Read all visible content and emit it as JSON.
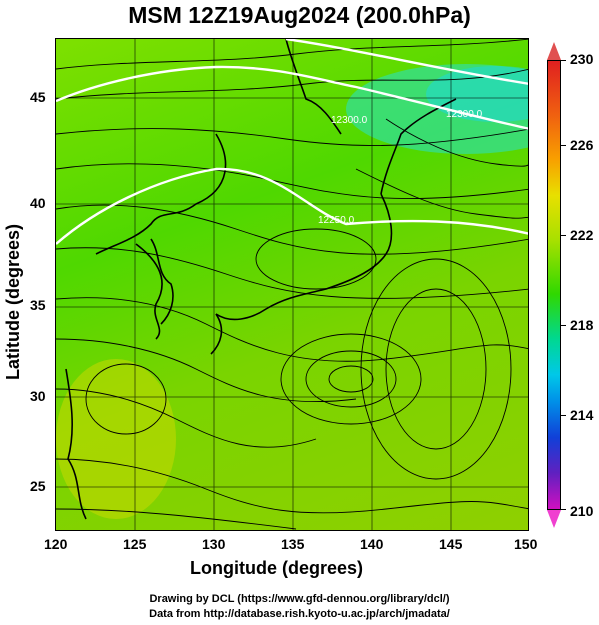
{
  "title": "MSM 12Z19Aug2024 (200.0hPa)",
  "xaxis": {
    "label": "Longitude (degrees)",
    "ticks": [
      "120",
      "125",
      "130",
      "135",
      "140",
      "145",
      "150"
    ]
  },
  "yaxis": {
    "label": "Latitude  (degrees)",
    "ticks": [
      "45",
      "40",
      "35",
      "30",
      "25"
    ]
  },
  "colorbar": {
    "ticks": [
      "230",
      "226",
      "222",
      "218",
      "214",
      "210"
    ]
  },
  "contours": {
    "label_a": "12300.0",
    "label_b": "12300.0",
    "label_c": "12250.0"
  },
  "credits": {
    "line1": "Drawing by DCL (https://www.gfd-dennou.org/library/dcl/)",
    "line2": "Data from http://database.rish.kyoto-u.ac.jp/arch/jmadata/"
  },
  "chart_data": {
    "type": "heatmap",
    "title": "MSM 12Z19Aug2024 (200.0hPa)",
    "xlabel": "Longitude (degrees)",
    "ylabel": "Latitude  (degrees)",
    "xlim": [
      120,
      150
    ],
    "ylim": [
      22.4,
      47.6
    ],
    "colorbar_range": [
      210,
      230
    ],
    "colorbar_ticks": [
      230,
      226,
      222,
      218,
      214,
      210
    ],
    "x_ticks": [
      120,
      125,
      130,
      135,
      140,
      145,
      150
    ],
    "y_ticks": [
      25,
      30,
      35,
      40,
      45
    ],
    "grid": true,
    "overlays": [
      "streamlines",
      "geopotential contours (white)",
      "coastlines"
    ]
  }
}
